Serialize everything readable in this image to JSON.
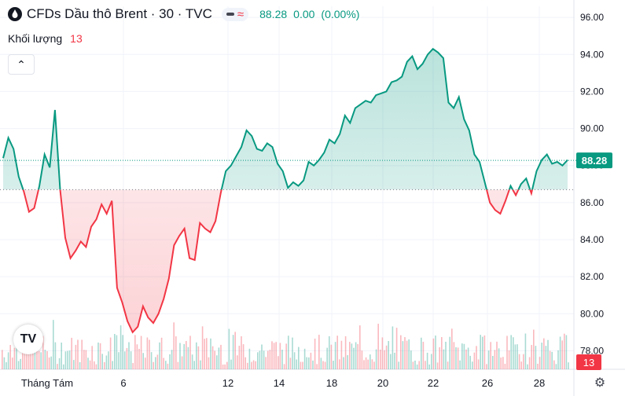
{
  "header": {
    "symbol_title": "CFDs Dầu thô Brent · 30 · TVC",
    "last_price": "88.28",
    "change": "0.00",
    "change_pct": "(0.00%)"
  },
  "volume_legend": {
    "label": "Khối lượng",
    "value": "13"
  },
  "badges": {
    "price_badge": "88.28",
    "volume_badge": "13"
  },
  "logo_text": "TV",
  "colors": {
    "up": "#089981",
    "down": "#f23645",
    "baseline": "#131722"
  },
  "icons": [
    "droplet-icon",
    "line-style-icon",
    "wave-icon",
    "chevron-up-icon",
    "tradingview-logo-icon",
    "settings-icon"
  ],
  "chart_data": {
    "type": "area",
    "style": "baseline",
    "baseline_value": 86.7,
    "last_value": 88.28,
    "ylim": [
      77.0,
      96.6
    ],
    "y_ticks": [
      "96.00",
      "94.00",
      "92.00",
      "90.00",
      "88.00",
      "86.00",
      "84.00",
      "82.00",
      "80.00",
      "78.00"
    ],
    "x_ticks": [
      "Tháng Tám",
      "6",
      "12",
      "14",
      "18",
      "20",
      "22",
      "26",
      "28"
    ],
    "grid": true,
    "series": [
      {
        "values": [
          88.4,
          89.5,
          88.9,
          87.4,
          86.6,
          85.5,
          85.7,
          86.9,
          88.6,
          87.9,
          91.0,
          86.7,
          84.1,
          83.0,
          83.4,
          83.9,
          83.6,
          84.7,
          85.1,
          85.9,
          85.4,
          86.1,
          81.4,
          80.6,
          79.6,
          79.0,
          79.3,
          80.4,
          79.8,
          79.5,
          80.0,
          80.8,
          81.9,
          83.7,
          84.2,
          84.6,
          83.0,
          82.9,
          84.9,
          84.6,
          84.4,
          85.0,
          86.5,
          87.7,
          88.0,
          88.5,
          89.0,
          89.9,
          89.6,
          88.9,
          88.8,
          89.2,
          89.0,
          88.1,
          87.7,
          86.8,
          87.1,
          86.9,
          87.2,
          88.2,
          88.0,
          88.3,
          88.7,
          89.4,
          89.2,
          89.7,
          90.7,
          90.3,
          91.1,
          91.3,
          91.5,
          91.4,
          91.8,
          91.9,
          92.0,
          92.5,
          92.6,
          92.8,
          93.6,
          93.9,
          93.2,
          93.5,
          94.0,
          94.3,
          94.1,
          93.8,
          91.4,
          91.1,
          91.7,
          90.5,
          89.9,
          88.6,
          88.2,
          87.1,
          86.0,
          85.6,
          85.4,
          86.1,
          86.9,
          86.4,
          87.0,
          87.3,
          86.5,
          87.7,
          88.3,
          88.6,
          88.1,
          88.2,
          88.0,
          88.3
        ]
      }
    ]
  }
}
